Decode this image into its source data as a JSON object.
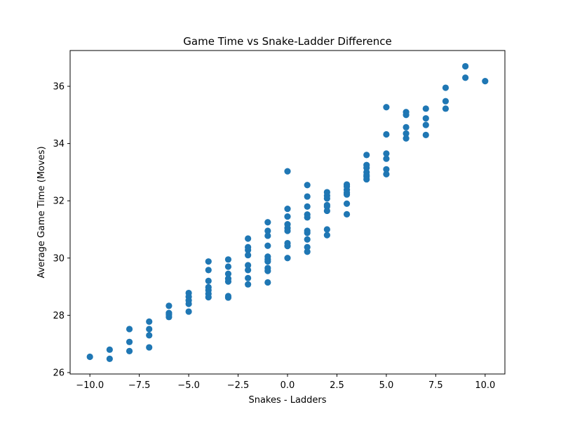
{
  "chart_data": {
    "type": "scatter",
    "title": "Game Time vs Snake-Ladder Difference",
    "xlabel": "Snakes - Ladders",
    "ylabel": "Average Game Time (Moves)",
    "xlim": [
      -11.0,
      11.0
    ],
    "ylim": [
      25.95,
      37.25
    ],
    "xticks": [
      -10.0,
      -7.5,
      -5.0,
      -2.5,
      0.0,
      2.5,
      5.0,
      7.5,
      10.0
    ],
    "xtick_labels": [
      "−10.0",
      "−7.5",
      "−5.0",
      "−2.5",
      "0.0",
      "2.5",
      "5.0",
      "7.5",
      "10.0"
    ],
    "yticks": [
      26,
      28,
      30,
      32,
      34,
      36
    ],
    "ytick_labels": [
      "26",
      "28",
      "30",
      "32",
      "34",
      "36"
    ],
    "grid": false,
    "color": "#1f77b4",
    "series": [
      {
        "points": [
          [
            -10,
            26.55
          ],
          [
            -9,
            26.8
          ],
          [
            -9,
            26.48
          ],
          [
            -8,
            27.52
          ],
          [
            -8,
            27.07
          ],
          [
            -8,
            26.75
          ],
          [
            -7,
            27.78
          ],
          [
            -7,
            27.52
          ],
          [
            -7,
            27.3
          ],
          [
            -7,
            26.88
          ],
          [
            -6,
            28.33
          ],
          [
            -6,
            28.08
          ],
          [
            -6,
            28.02
          ],
          [
            -6,
            27.94
          ],
          [
            -5,
            28.78
          ],
          [
            -5,
            28.65
          ],
          [
            -5,
            28.52
          ],
          [
            -5,
            28.4
          ],
          [
            -5,
            28.13
          ],
          [
            -4,
            29.88
          ],
          [
            -4,
            29.58
          ],
          [
            -4,
            29.2
          ],
          [
            -4,
            28.98
          ],
          [
            -4,
            28.88
          ],
          [
            -4,
            28.75
          ],
          [
            -4,
            28.63
          ],
          [
            -3,
            29.95
          ],
          [
            -3,
            29.7
          ],
          [
            -3,
            29.45
          ],
          [
            -3,
            29.28
          ],
          [
            -3,
            29.18
          ],
          [
            -3,
            28.67
          ],
          [
            -3,
            28.62
          ],
          [
            -2,
            30.68
          ],
          [
            -2,
            30.38
          ],
          [
            -2,
            30.28
          ],
          [
            -2,
            30.1
          ],
          [
            -2,
            29.75
          ],
          [
            -2,
            29.58
          ],
          [
            -2,
            29.3
          ],
          [
            -2,
            29.08
          ],
          [
            -1,
            31.25
          ],
          [
            -1,
            30.95
          ],
          [
            -1,
            30.78
          ],
          [
            -1,
            30.43
          ],
          [
            -1,
            30.05
          ],
          [
            -1,
            29.95
          ],
          [
            -1,
            29.88
          ],
          [
            -1,
            29.65
          ],
          [
            -1,
            29.55
          ],
          [
            -1,
            29.15
          ],
          [
            0,
            33.03
          ],
          [
            0,
            31.72
          ],
          [
            0,
            31.45
          ],
          [
            0,
            31.18
          ],
          [
            0,
            31.05
          ],
          [
            0,
            30.95
          ],
          [
            0,
            30.52
          ],
          [
            0,
            30.42
          ],
          [
            0,
            30.0
          ],
          [
            1,
            32.55
          ],
          [
            1,
            32.15
          ],
          [
            1,
            31.8
          ],
          [
            1,
            31.52
          ],
          [
            1,
            31.42
          ],
          [
            1,
            30.95
          ],
          [
            1,
            30.88
          ],
          [
            1,
            30.65
          ],
          [
            1,
            30.38
          ],
          [
            1,
            30.22
          ],
          [
            2,
            32.3
          ],
          [
            2,
            32.18
          ],
          [
            2,
            32.08
          ],
          [
            2,
            31.85
          ],
          [
            2,
            31.8
          ],
          [
            2,
            31.65
          ],
          [
            2,
            31.0
          ],
          [
            2,
            30.8
          ],
          [
            3,
            32.57
          ],
          [
            3,
            32.5
          ],
          [
            3,
            32.38
          ],
          [
            3,
            32.28
          ],
          [
            3,
            32.22
          ],
          [
            3,
            31.9
          ],
          [
            3,
            31.53
          ],
          [
            4,
            33.6
          ],
          [
            4,
            33.25
          ],
          [
            4,
            33.15
          ],
          [
            4,
            33.0
          ],
          [
            4,
            32.9
          ],
          [
            4,
            32.85
          ],
          [
            4,
            32.75
          ],
          [
            5,
            35.27
          ],
          [
            5,
            34.32
          ],
          [
            5,
            33.65
          ],
          [
            5,
            33.47
          ],
          [
            5,
            33.1
          ],
          [
            5,
            32.93
          ],
          [
            6,
            35.1
          ],
          [
            6,
            35.0
          ],
          [
            6,
            34.57
          ],
          [
            6,
            34.35
          ],
          [
            6,
            34.18
          ],
          [
            7,
            35.22
          ],
          [
            7,
            34.88
          ],
          [
            7,
            34.65
          ],
          [
            7,
            34.3
          ],
          [
            8,
            35.95
          ],
          [
            8,
            35.48
          ],
          [
            8,
            35.22
          ],
          [
            9,
            36.7
          ],
          [
            9,
            36.3
          ],
          [
            10,
            36.18
          ]
        ]
      }
    ]
  }
}
